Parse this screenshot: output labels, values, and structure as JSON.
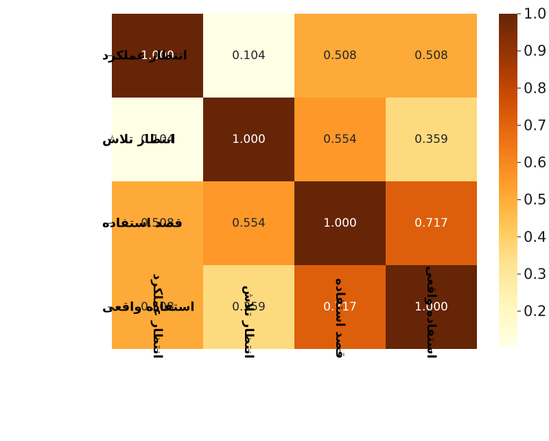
{
  "chart_data": {
    "type": "heatmap",
    "title": "",
    "xlabel": "",
    "ylabel": "",
    "rows": [
      "انتظار عملکرد",
      "انتظار تلاش",
      "قصد استفاده",
      "استفاده واقعی"
    ],
    "columns": [
      "انتظار عملکرد",
      "انتظار تلاش",
      "قصد استفاده",
      "استفاده واقعی"
    ],
    "values": [
      [
        1.0,
        0.104,
        0.508,
        0.508
      ],
      [
        0.104,
        1.0,
        0.554,
        0.359
      ],
      [
        0.508,
        0.554,
        1.0,
        0.717
      ],
      [
        0.508,
        0.359,
        0.717,
        1.0
      ]
    ],
    "cell_labels": [
      [
        "1.000",
        "0.104",
        "0.508",
        "0.508"
      ],
      [
        "0.104",
        "1.000",
        "0.554",
        "0.359"
      ],
      [
        "0.508",
        "0.554",
        "1.000",
        "0.717"
      ],
      [
        "0.508",
        "0.359",
        "0.717",
        "1.000"
      ]
    ],
    "colormap": "YlOrBr",
    "colorbar": {
      "range": [
        0.104,
        1.0
      ],
      "ticks": [
        1.0,
        0.9,
        0.8,
        0.7,
        0.6,
        0.5,
        0.4,
        0.3,
        0.2
      ],
      "tick_labels": [
        "1.0",
        "0.9",
        "0.8",
        "0.7",
        "0.6",
        "0.5",
        "0.4",
        "0.3",
        "0.2"
      ],
      "placement": "right"
    },
    "colors": {
      "low": "#ffffe5",
      "high": "#662506",
      "light_text": "#ffffff",
      "dark_text": "#262626"
    }
  }
}
